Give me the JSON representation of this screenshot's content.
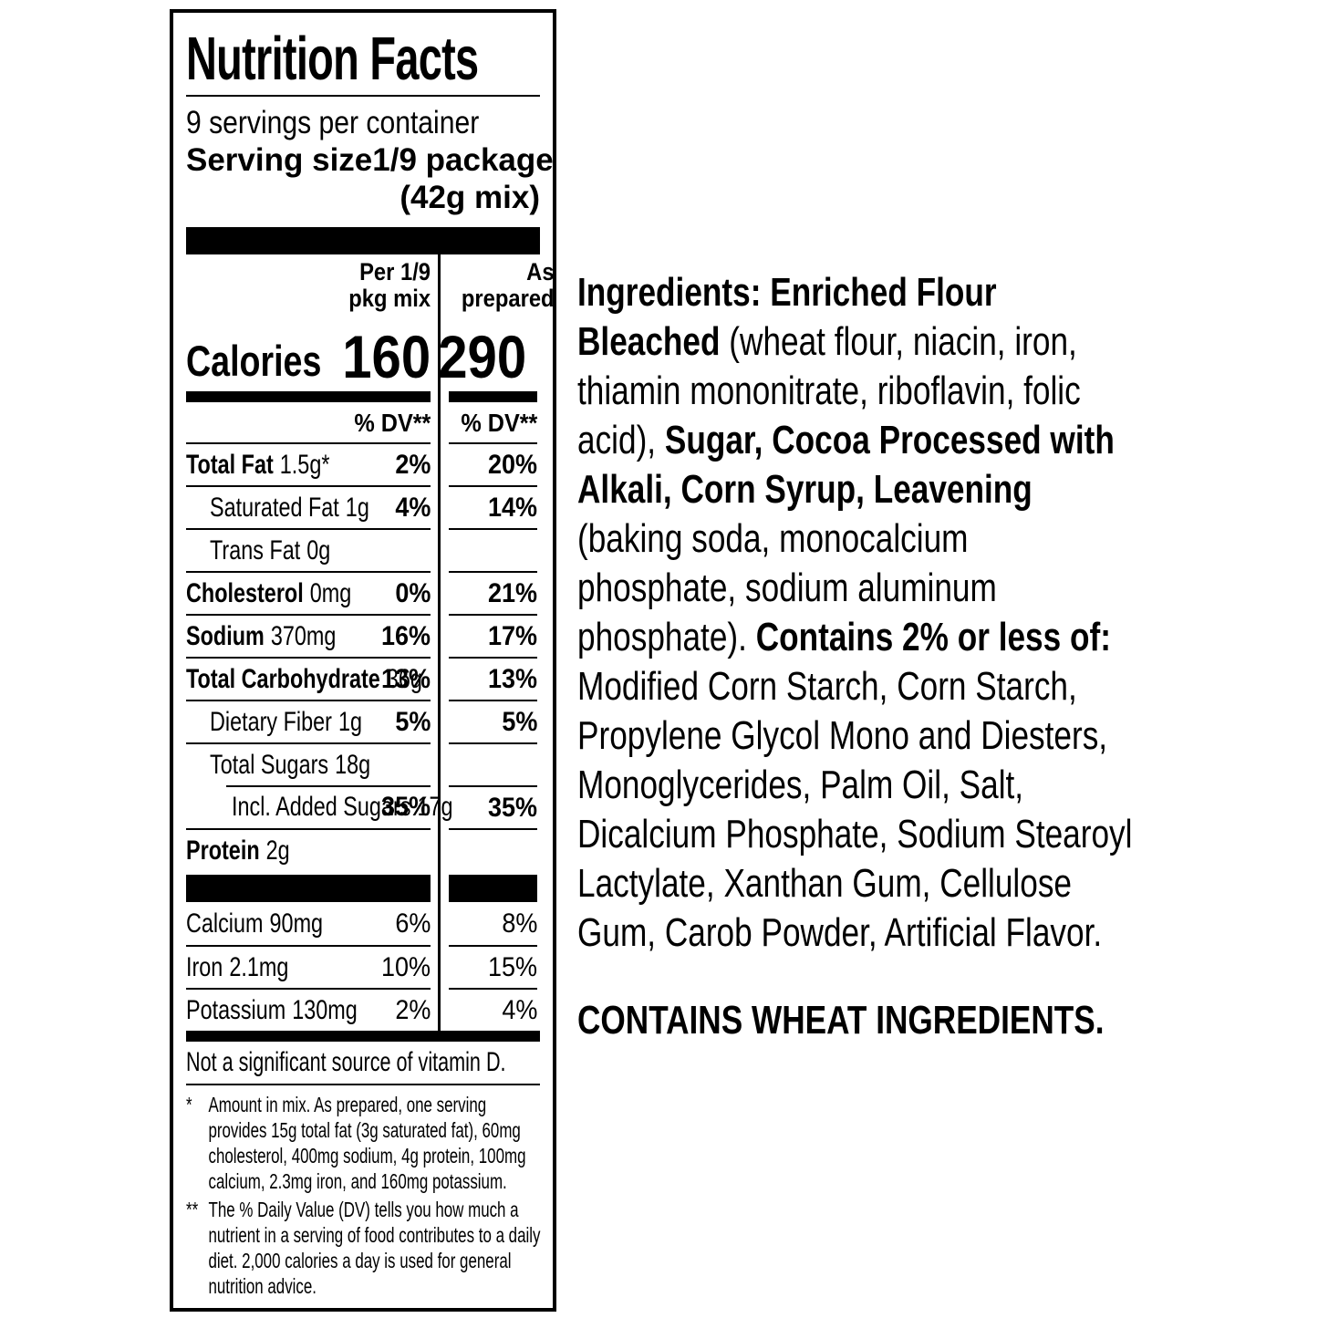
{
  "colors": {
    "ink": "#000000",
    "paper": "#ffffff"
  },
  "nutrition_label": {
    "title": "Nutrition Facts",
    "servings_per_container": "9 servings per container",
    "serving_size_label": "Serving size",
    "serving_size_value_line1": "1/9 package",
    "serving_size_value_line2": "(42g mix)",
    "column_headers": {
      "mix": "Per 1/9\npkg mix",
      "prepared": "As\nprepared"
    },
    "calories": {
      "label": "Calories",
      "mix": "160",
      "prepared": "290"
    },
    "percent_dv_header": "% DV**",
    "nutrients": [
      {
        "name": "Total Fat",
        "amount": "1.5g*",
        "dv_mix": "2%",
        "dv_prepared": "20%",
        "indent": 0,
        "bold": true
      },
      {
        "name": "Saturated Fat",
        "amount": "1g",
        "dv_mix": "4%",
        "dv_prepared": "14%",
        "indent": 1,
        "bold": false
      },
      {
        "name": "Trans Fat",
        "amount": "0g",
        "dv_mix": "",
        "dv_prepared": "",
        "indent": 1,
        "bold": false
      },
      {
        "name": "Cholesterol",
        "amount": "0mg",
        "dv_mix": "0%",
        "dv_prepared": "21%",
        "indent": 0,
        "bold": true
      },
      {
        "name": "Sodium",
        "amount": "370mg",
        "dv_mix": "16%",
        "dv_prepared": "17%",
        "indent": 0,
        "bold": true
      },
      {
        "name": "Total Carbohydrate",
        "amount": "36g",
        "dv_mix": "13%",
        "dv_prepared": "13%",
        "indent": 0,
        "bold": true
      },
      {
        "name": "Dietary Fiber",
        "amount": "1g",
        "dv_mix": "5%",
        "dv_prepared": "5%",
        "indent": 1,
        "bold": false
      },
      {
        "name": "Total Sugars",
        "amount": "18g",
        "dv_mix": "",
        "dv_prepared": "",
        "indent": 1,
        "bold": false
      },
      {
        "name": "Incl. Added Sugars",
        "amount": "17g",
        "dv_mix": "35%",
        "dv_prepared": "35%",
        "indent": 2,
        "bold": false,
        "separator_indented": true
      },
      {
        "name": "Protein",
        "amount": "2g",
        "dv_mix": "",
        "dv_prepared": "",
        "indent": 0,
        "bold": true
      }
    ],
    "minerals": [
      {
        "name": "Calcium",
        "amount": "90mg",
        "dv_mix": "6%",
        "dv_prepared": "8%"
      },
      {
        "name": "Iron",
        "amount": "2.1mg",
        "dv_mix": "10%",
        "dv_prepared": "15%"
      },
      {
        "name": "Potassium",
        "amount": "130mg",
        "dv_mix": "2%",
        "dv_prepared": "4%"
      }
    ],
    "no_significant_source": "Not a significant source of vitamin D.",
    "footnotes": [
      {
        "marker": "*",
        "text": "Amount in mix. As prepared, one serving provides 15g total fat (3g saturated fat), 60mg cholesterol, 400mg sodium, 4g protein, 100mg calcium, 2.3mg iron, and 160mg potassium."
      },
      {
        "marker": "**",
        "text": "The % Daily Value (DV) tells you how much a nutrient in a serving of food contributes to a daily diet. 2,000 calories a day is used for general nutrition advice."
      }
    ]
  },
  "ingredients_panel": {
    "lines": [
      [
        {
          "t": "Ingredients: Enriched Flour",
          "b": true
        }
      ],
      [
        {
          "t": "Bleached ",
          "b": true
        },
        {
          "t": "(wheat flour, niacin, iron,",
          "b": false
        }
      ],
      [
        {
          "t": "thiamin mononitrate, riboflavin, folic",
          "b": false
        }
      ],
      [
        {
          "t": "acid), ",
          "b": false
        },
        {
          "t": "Sugar, Cocoa Processed with",
          "b": true
        }
      ],
      [
        {
          "t": "Alkali, Corn Syrup, Leavening",
          "b": true
        }
      ],
      [
        {
          "t": "(baking soda, monocalcium",
          "b": false
        }
      ],
      [
        {
          "t": "phosphate, sodium aluminum",
          "b": false
        }
      ],
      [
        {
          "t": "phosphate). ",
          "b": false
        },
        {
          "t": "Contains 2% or less of:",
          "b": true
        }
      ],
      [
        {
          "t": "Modified Corn Starch, Corn Starch,",
          "b": false
        }
      ],
      [
        {
          "t": "Propylene Glycol Mono and Diesters,",
          "b": false
        }
      ],
      [
        {
          "t": "Monoglycerides, Palm Oil, Salt,",
          "b": false
        }
      ],
      [
        {
          "t": "Dicalcium Phosphate, Sodium Stearoyl",
          "b": false
        }
      ],
      [
        {
          "t": "Lactylate, Xanthan Gum, Cellulose",
          "b": false
        }
      ],
      [
        {
          "t": "Gum, Carob Powder, Artificial Flavor.",
          "b": false
        }
      ]
    ],
    "allergen_statement": "CONTAINS WHEAT INGREDIENTS."
  }
}
